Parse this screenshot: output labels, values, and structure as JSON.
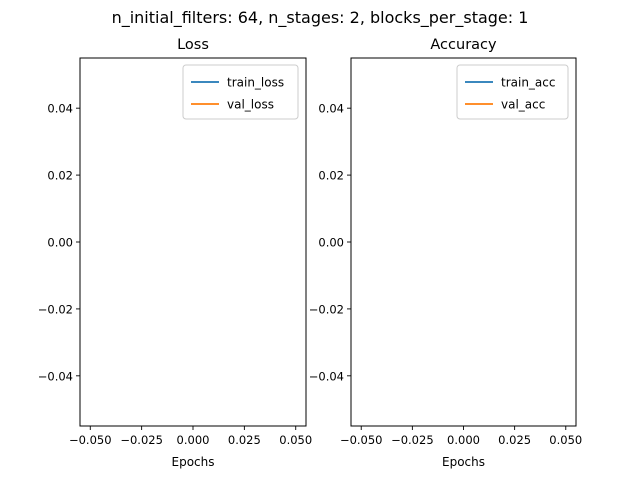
{
  "suptitle": "n_initial_filters: 64, n_stages: 2, blocks_per_stage: 1",
  "chart_data": [
    {
      "type": "line",
      "title": "Loss",
      "xlabel": "Epochs",
      "ylabel": "",
      "xlim": [
        -0.055,
        0.055
      ],
      "ylim": [
        -0.055,
        0.055
      ],
      "xticks": [
        -0.05,
        -0.025,
        0.0,
        0.025,
        0.05
      ],
      "xtick_labels": [
        "−0.050",
        "−0.025",
        "0.000",
        "0.025",
        "0.050"
      ],
      "yticks": [
        0.04,
        0.02,
        0.0,
        -0.02,
        -0.04
      ],
      "ytick_labels": [
        "0.04",
        "0.02",
        "0.00",
        "−0.02",
        "−0.04"
      ],
      "legend_position": "upper right",
      "series": [
        {
          "name": "train_loss",
          "color": "#1f77b4",
          "x": [],
          "y": []
        },
        {
          "name": "val_loss",
          "color": "#ff7f0e",
          "x": [],
          "y": []
        }
      ],
      "grid": false
    },
    {
      "type": "line",
      "title": "Accuracy",
      "xlabel": "Epochs",
      "ylabel": "",
      "xlim": [
        -0.055,
        0.055
      ],
      "ylim": [
        -0.055,
        0.055
      ],
      "xticks": [
        -0.05,
        -0.025,
        0.0,
        0.025,
        0.05
      ],
      "xtick_labels": [
        "−0.050",
        "−0.025",
        "0.000",
        "0.025",
        "0.050"
      ],
      "yticks": [
        0.04,
        0.02,
        0.0,
        -0.02,
        -0.04
      ],
      "ytick_labels": [
        "0.04",
        "0.02",
        "0.00",
        "−0.02",
        "−0.04"
      ],
      "legend_position": "upper right",
      "series": [
        {
          "name": "train_acc",
          "color": "#1f77b4",
          "x": [],
          "y": []
        },
        {
          "name": "val_acc",
          "color": "#ff7f0e",
          "x": [],
          "y": []
        }
      ],
      "grid": false
    }
  ]
}
